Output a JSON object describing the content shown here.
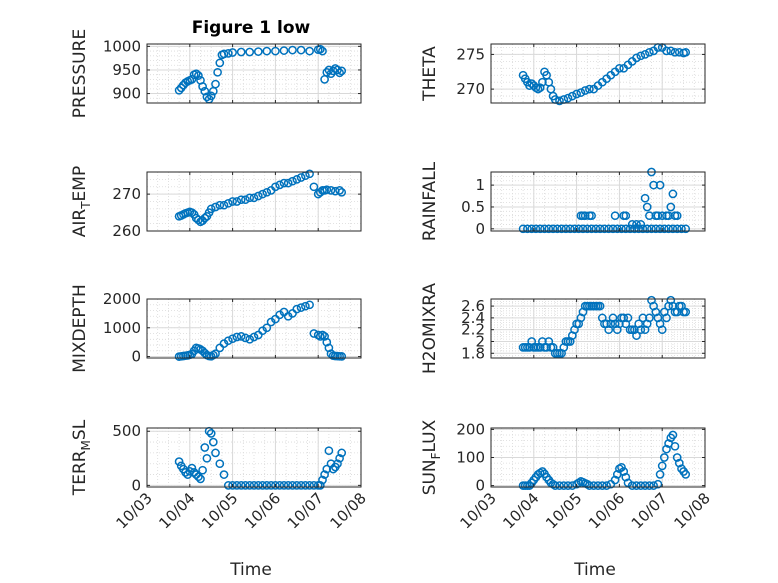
{
  "title": "Figure 1 low",
  "xlabel": "Time",
  "colors": {
    "marker": "#0072BD",
    "grid": "#d9d9d9",
    "axes": "#262626"
  },
  "chart_data": [
    {
      "type": "scatter",
      "ylabel": "PRESSURE",
      "ylim": [
        880,
        1005
      ],
      "yticks": [
        "900",
        "950",
        "1000"
      ],
      "xlim": [
        3,
        8
      ],
      "grid": true,
      "xtick_labels": [],
      "series": [
        {
          "x": [
            3.75,
            3.8,
            3.85,
            3.9,
            3.95,
            4.0,
            4.05,
            4.1,
            4.15,
            4.2,
            4.25,
            4.3,
            4.35,
            4.4,
            4.45,
            4.5,
            4.55,
            4.6,
            4.65,
            4.7,
            4.75,
            4.8,
            4.9,
            5.0,
            5.2,
            5.4,
            5.6,
            5.8,
            6.0,
            6.2,
            6.4,
            6.6,
            6.8,
            7.0,
            7.05,
            7.1,
            7.15,
            7.2,
            7.25,
            7.3,
            7.35,
            7.4,
            7.45,
            7.5,
            7.55
          ],
          "y": [
            907,
            912,
            918,
            923,
            926,
            928,
            930,
            940,
            942,
            938,
            928,
            915,
            905,
            893,
            888,
            895,
            905,
            920,
            945,
            965,
            982,
            984,
            985,
            987,
            988,
            988,
            989,
            990,
            990,
            991,
            992,
            992,
            990,
            993,
            994,
            990,
            930,
            945,
            950,
            942,
            948,
            953,
            950,
            944,
            948
          ]
        }
      ]
    },
    {
      "type": "scatter",
      "ylabel": "THETA",
      "ylim": [
        268,
        276.5
      ],
      "yticks": [
        "270",
        "275"
      ],
      "xlim": [
        3,
        8
      ],
      "grid": true,
      "xtick_labels": [],
      "series": [
        {
          "x": [
            3.75,
            3.8,
            3.85,
            3.9,
            3.95,
            4.0,
            4.05,
            4.1,
            4.15,
            4.2,
            4.25,
            4.3,
            4.35,
            4.4,
            4.45,
            4.5,
            4.6,
            4.7,
            4.8,
            4.9,
            5.0,
            5.1,
            5.2,
            5.3,
            5.4,
            5.5,
            5.6,
            5.7,
            5.8,
            5.9,
            6.0,
            6.1,
            6.2,
            6.3,
            6.4,
            6.5,
            6.6,
            6.7,
            6.8,
            6.9,
            7.0,
            7.1,
            7.2,
            7.3,
            7.4,
            7.5,
            7.55
          ],
          "y": [
            272,
            271.5,
            271,
            270.5,
            270.8,
            270.5,
            270.2,
            270,
            270.2,
            271,
            272.5,
            272,
            271,
            270,
            269,
            268.5,
            268.3,
            268.5,
            268.7,
            269,
            269.3,
            269.5,
            269.8,
            270,
            270,
            270.5,
            271,
            271.5,
            272,
            272.5,
            273,
            273,
            273.5,
            274,
            274.5,
            274.8,
            275,
            275.3,
            275.5,
            276,
            276,
            275.5,
            275.5,
            275.3,
            275.3,
            275.2,
            275.3
          ]
        }
      ]
    },
    {
      "type": "scatter",
      "ylabel": "AIR",
      "ylabel_sub": "T",
      "ylabel_rest": "EMP",
      "ylim": [
        260,
        276
      ],
      "yticks": [
        "260",
        "270"
      ],
      "xlim": [
        3,
        8
      ],
      "grid": true,
      "xtick_labels": [],
      "series": [
        {
          "x": [
            3.75,
            3.8,
            3.85,
            3.9,
            3.95,
            4.0,
            4.05,
            4.1,
            4.15,
            4.2,
            4.25,
            4.3,
            4.35,
            4.4,
            4.45,
            4.5,
            4.6,
            4.7,
            4.8,
            4.9,
            5.0,
            5.1,
            5.2,
            5.3,
            5.4,
            5.5,
            5.6,
            5.7,
            5.8,
            5.9,
            6.0,
            6.1,
            6.2,
            6.3,
            6.4,
            6.5,
            6.6,
            6.7,
            6.8,
            6.9,
            7.0,
            7.05,
            7.1,
            7.15,
            7.2,
            7.3,
            7.4,
            7.5,
            7.55
          ],
          "y": [
            264,
            264.2,
            264.5,
            264.8,
            265,
            265.2,
            265,
            264.5,
            263.5,
            263,
            262.5,
            262.8,
            263.5,
            264,
            265,
            266,
            266.5,
            267,
            267,
            267.5,
            268,
            268,
            268.5,
            268.5,
            269,
            269,
            269.5,
            270,
            270.5,
            271,
            272,
            272.5,
            273,
            273,
            273.5,
            274,
            274.5,
            275,
            275.5,
            272,
            270,
            270.5,
            271,
            271,
            271.2,
            271,
            270.8,
            271,
            270.5
          ]
        }
      ]
    },
    {
      "type": "scatter",
      "ylabel": "RAINFALL",
      "ylim": [
        -0.05,
        1.3
      ],
      "yticks": [
        "0",
        "0.5",
        "1"
      ],
      "xlim": [
        3,
        8
      ],
      "grid": true,
      "xtick_labels": [],
      "series": [
        {
          "x": [
            3.75,
            3.85,
            3.95,
            4.05,
            4.15,
            4.25,
            4.35,
            4.45,
            4.55,
            4.65,
            4.75,
            4.85,
            4.95,
            5.05,
            5.15,
            5.25,
            5.35,
            5.45,
            5.55,
            5.65,
            5.75,
            5.85,
            5.95,
            6.05,
            6.15,
            6.25,
            6.35,
            6.45,
            6.55,
            6.65,
            6.75,
            6.85,
            6.95,
            7.05,
            7.15,
            7.25,
            7.35,
            7.45,
            7.55,
            5.1,
            5.15,
            5.2,
            5.3,
            5.35,
            5.9,
            6.1,
            6.15,
            6.6,
            6.65,
            6.7,
            6.75,
            6.8,
            6.85,
            6.9,
            6.95,
            7.0,
            7.1,
            7.15,
            7.2,
            7.25,
            7.3,
            7.35,
            6.3,
            6.4,
            6.5
          ],
          "y": [
            0,
            0,
            0,
            0,
            0,
            0,
            0,
            0,
            0,
            0,
            0,
            0,
            0,
            0,
            0,
            0,
            0,
            0,
            0,
            0,
            0,
            0,
            0,
            0,
            0,
            0,
            0,
            0,
            0,
            0,
            0,
            0,
            0,
            0,
            0,
            0,
            0,
            0,
            0,
            0.3,
            0.3,
            0.3,
            0.3,
            0.3,
            0.3,
            0.3,
            0.3,
            0.7,
            0.5,
            0.3,
            1.3,
            1.0,
            0.3,
            0.3,
            1.0,
            0.3,
            0.3,
            0.3,
            0.5,
            0.8,
            0.3,
            0.3,
            0.1,
            0.1,
            0.1
          ]
        }
      ]
    },
    {
      "type": "scatter",
      "ylabel": "MIXDEPTH",
      "ylim": [
        -50,
        2000
      ],
      "yticks": [
        "0",
        "1000",
        "2000"
      ],
      "xlim": [
        3,
        8
      ],
      "grid": true,
      "xtick_labels": [],
      "series": [
        {
          "x": [
            3.75,
            3.8,
            3.85,
            3.9,
            3.95,
            4.0,
            4.05,
            4.1,
            4.15,
            4.2,
            4.25,
            4.3,
            4.35,
            4.4,
            4.45,
            4.5,
            4.55,
            4.6,
            4.7,
            4.8,
            4.9,
            5.0,
            5.1,
            5.2,
            5.3,
            5.4,
            5.5,
            5.6,
            5.7,
            5.8,
            5.9,
            6.0,
            6.1,
            6.2,
            6.3,
            6.4,
            6.5,
            6.6,
            6.7,
            6.8,
            6.9,
            7.0,
            7.05,
            7.1,
            7.15,
            7.2,
            7.25,
            7.3,
            7.35,
            7.4,
            7.45,
            7.5,
            7.55
          ],
          "y": [
            0,
            10,
            20,
            30,
            40,
            60,
            90,
            200,
            300,
            280,
            250,
            200,
            120,
            50,
            20,
            10,
            50,
            100,
            300,
            450,
            550,
            620,
            680,
            700,
            650,
            600,
            680,
            750,
            900,
            1000,
            1200,
            1300,
            1450,
            1550,
            1400,
            1500,
            1650,
            1700,
            1750,
            1800,
            800,
            750,
            700,
            750,
            700,
            500,
            300,
            100,
            30,
            20,
            15,
            10,
            5
          ]
        }
      ]
    },
    {
      "type": "scatter",
      "ylabel": "H2OMIXRA",
      "ylim": [
        1.72,
        2.72
      ],
      "yticks": [
        "1.8",
        "2",
        "2.2",
        "2.4",
        "2.6"
      ],
      "xlim": [
        3,
        8
      ],
      "grid": true,
      "xtick_labels": [],
      "series": [
        {
          "x": [
            3.75,
            3.8,
            3.85,
            3.9,
            3.95,
            4.0,
            4.05,
            4.1,
            4.15,
            4.2,
            4.25,
            4.3,
            4.35,
            4.4,
            4.45,
            4.5,
            4.55,
            4.6,
            4.65,
            4.7,
            4.75,
            4.8,
            4.85,
            4.9,
            4.95,
            5.0,
            5.05,
            5.1,
            5.15,
            5.2,
            5.25,
            5.3,
            5.35,
            5.4,
            5.45,
            5.5,
            5.55,
            5.6,
            5.65,
            5.7,
            5.75,
            5.8,
            5.85,
            5.9,
            5.95,
            6.0,
            6.05,
            6.1,
            6.15,
            6.2,
            6.25,
            6.3,
            6.35,
            6.4,
            6.45,
            6.5,
            6.55,
            6.6,
            6.65,
            6.7,
            6.75,
            6.8,
            6.85,
            6.9,
            6.95,
            7.0,
            7.05,
            7.1,
            7.15,
            7.2,
            7.25,
            7.3,
            7.35,
            7.4,
            7.45,
            7.5,
            7.55
          ],
          "y": [
            1.9,
            1.9,
            1.9,
            1.9,
            2.0,
            1.9,
            1.9,
            1.9,
            1.9,
            2.0,
            1.9,
            1.9,
            2.0,
            1.9,
            1.9,
            1.8,
            1.8,
            1.8,
            1.8,
            1.9,
            2.0,
            2.0,
            2.0,
            2.1,
            2.2,
            2.3,
            2.3,
            2.4,
            2.5,
            2.6,
            2.6,
            2.6,
            2.6,
            2.6,
            2.6,
            2.6,
            2.6,
            2.4,
            2.3,
            2.3,
            2.2,
            2.3,
            2.4,
            2.3,
            2.2,
            2.3,
            2.4,
            2.4,
            2.3,
            2.4,
            2.2,
            2.2,
            2.2,
            2.1,
            2.3,
            2.2,
            2.4,
            2.2,
            2.3,
            2.4,
            2.7,
            2.6,
            2.5,
            2.4,
            2.3,
            2.2,
            2.5,
            2.4,
            2.6,
            2.7,
            2.6,
            2.5,
            2.5,
            2.6,
            2.6,
            2.5,
            2.5
          ]
        }
      ]
    },
    {
      "type": "scatter",
      "ylabel": "TERR",
      "ylabel_sub": "M",
      "ylabel_rest": "SL",
      "ylim": [
        -15,
        530
      ],
      "yticks": [
        "0",
        "500"
      ],
      "xlim": [
        3,
        8
      ],
      "grid": true,
      "xtick_labels": [
        "10/03",
        "10/04",
        "10/05",
        "10/06",
        "10/07",
        "10/08"
      ],
      "series": [
        {
          "x": [
            3.75,
            3.8,
            3.85,
            3.9,
            3.95,
            4.0,
            4.05,
            4.1,
            4.15,
            4.2,
            4.25,
            4.3,
            4.35,
            4.4,
            4.45,
            4.5,
            4.55,
            4.6,
            4.7,
            4.8,
            4.9,
            5.0,
            5.1,
            5.2,
            5.3,
            5.4,
            5.5,
            5.6,
            5.7,
            5.8,
            5.9,
            6.0,
            6.1,
            6.2,
            6.3,
            6.4,
            6.5,
            6.6,
            6.7,
            6.8,
            6.9,
            7.0,
            7.05,
            7.1,
            7.15,
            7.2,
            7.25,
            7.3,
            7.35,
            7.4,
            7.45,
            7.5,
            7.55
          ],
          "y": [
            220,
            180,
            150,
            120,
            100,
            130,
            160,
            120,
            100,
            80,
            60,
            140,
            350,
            250,
            500,
            480,
            400,
            300,
            200,
            100,
            0,
            0,
            0,
            0,
            0,
            0,
            0,
            0,
            0,
            0,
            0,
            0,
            0,
            0,
            0,
            0,
            0,
            0,
            0,
            0,
            0,
            0,
            0,
            50,
            100,
            150,
            320,
            200,
            150,
            170,
            200,
            250,
            300
          ]
        }
      ]
    },
    {
      "type": "scatter",
      "ylabel": "SUN",
      "ylabel_sub": "F",
      "ylabel_rest": "LUX",
      "ylim": [
        -5,
        205
      ],
      "yticks": [
        "0",
        "100",
        "200"
      ],
      "xlim": [
        3,
        8
      ],
      "grid": true,
      "xtick_labels": [
        "10/03",
        "10/04",
        "10/05",
        "10/06",
        "10/07",
        "10/08"
      ],
      "series": [
        {
          "x": [
            3.75,
            3.8,
            3.85,
            3.9,
            3.95,
            4.0,
            4.05,
            4.1,
            4.15,
            4.2,
            4.25,
            4.3,
            4.35,
            4.4,
            4.45,
            4.5,
            4.6,
            4.7,
            4.8,
            4.9,
            5.0,
            5.05,
            5.1,
            5.15,
            5.2,
            5.25,
            5.3,
            5.4,
            5.5,
            5.6,
            5.7,
            5.8,
            5.9,
            5.95,
            6.0,
            6.05,
            6.1,
            6.15,
            6.2,
            6.3,
            6.4,
            6.5,
            6.6,
            6.7,
            6.8,
            6.9,
            6.95,
            7.0,
            7.05,
            7.1,
            7.15,
            7.2,
            7.25,
            7.3,
            7.35,
            7.4,
            7.45,
            7.5,
            7.55
          ],
          "y": [
            0,
            0,
            0,
            0,
            10,
            20,
            30,
            40,
            45,
            50,
            42,
            30,
            20,
            10,
            5,
            0,
            0,
            0,
            0,
            0,
            5,
            10,
            15,
            12,
            8,
            5,
            0,
            0,
            0,
            0,
            0,
            5,
            20,
            40,
            60,
            65,
            50,
            30,
            10,
            0,
            0,
            0,
            0,
            0,
            0,
            5,
            40,
            70,
            100,
            130,
            150,
            170,
            180,
            140,
            100,
            80,
            60,
            50,
            40
          ]
        }
      ]
    }
  ]
}
